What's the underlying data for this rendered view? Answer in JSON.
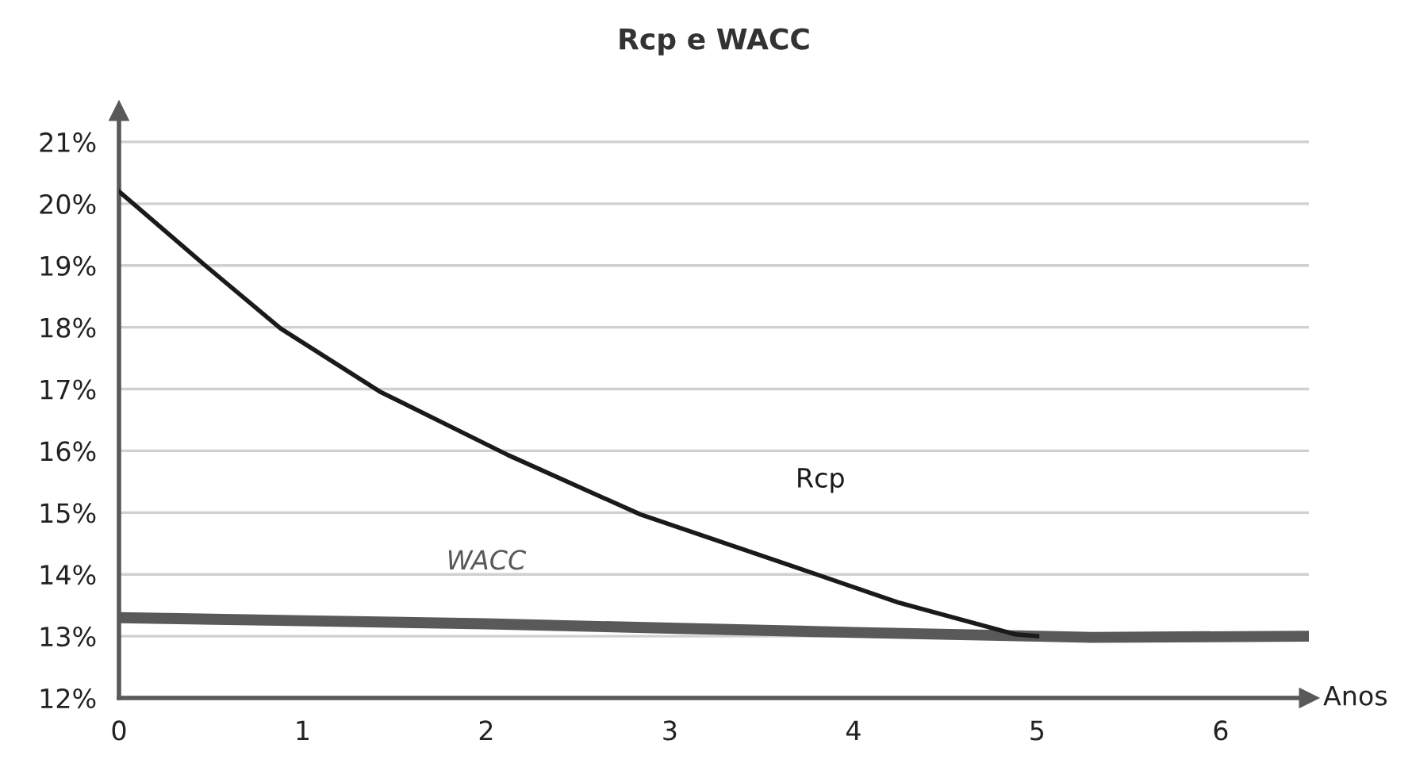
{
  "chart_data": {
    "type": "line",
    "title": "Rcp e WACC",
    "xlabel": "Anos",
    "series": [
      {
        "name": "Rcp",
        "color": "#1a1a1a",
        "x": [
          0,
          0.47,
          0.88,
          1.42,
          2.12,
          2.84,
          3.7,
          4.25,
          4.88,
          5.0
        ],
        "values": [
          20.2,
          19.0,
          17.98,
          16.96,
          15.93,
          14.97,
          14.1,
          13.54,
          13.03,
          13.0
        ]
      },
      {
        "name": "WACC",
        "color": "#595959",
        "x": [
          0,
          1,
          2,
          3,
          4,
          5,
          5.3,
          6.48
        ],
        "values": [
          13.3,
          13.25,
          13.2,
          13.13,
          13.06,
          13.0,
          12.98,
          13.0
        ]
      }
    ],
    "xlim": [
      0,
      6.48
    ],
    "ylim": [
      12,
      21.5
    ],
    "xticks": [
      0,
      1,
      2,
      3,
      4,
      5,
      6
    ],
    "yticks": [
      {
        "value": 12,
        "label": "12%"
      },
      {
        "value": 13,
        "label": "13%"
      },
      {
        "value": 14,
        "label": "14%"
      },
      {
        "value": 15,
        "label": "15%"
      },
      {
        "value": 16,
        "label": "16%"
      },
      {
        "value": 17,
        "label": "17%"
      },
      {
        "value": 18,
        "label": "18%"
      },
      {
        "value": 19,
        "label": "19%"
      },
      {
        "value": 20,
        "label": "20%"
      },
      {
        "value": 21,
        "label": "21%"
      }
    ],
    "grid": "y",
    "legend": false,
    "marker": "none",
    "line_style": "solid"
  }
}
